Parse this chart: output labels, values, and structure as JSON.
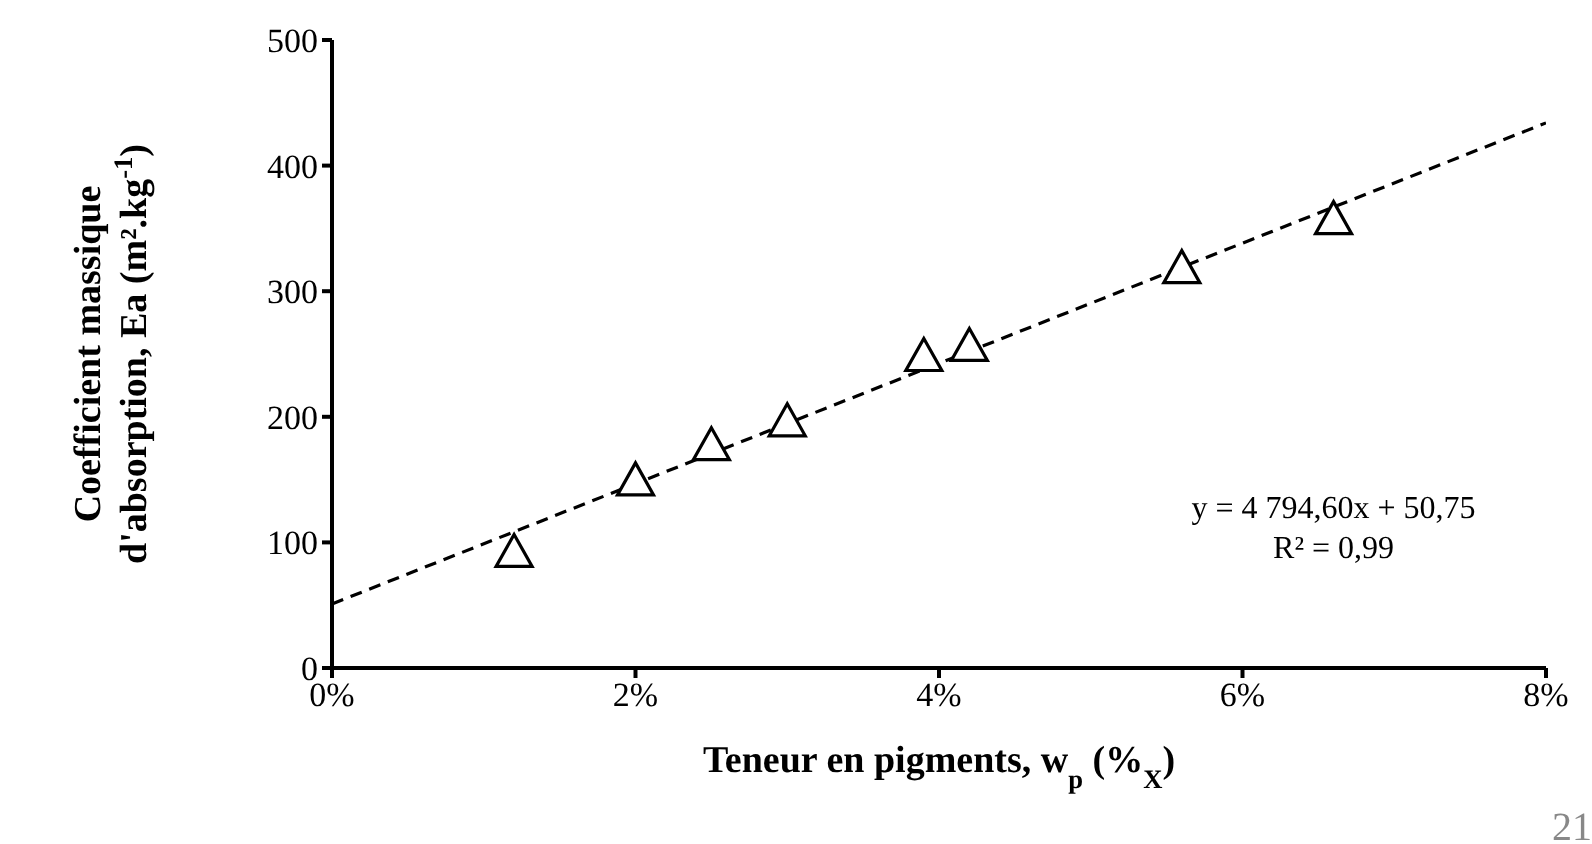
{
  "chart_data": {
    "type": "scatter",
    "xlabel": "Teneur en pigments, w$_{p}$ (%$_{X}$)",
    "ylabel": "Coefficient massique\nd'absorption, Ea (m².kg$^{-1}$)",
    "xlim": [
      0,
      0.08
    ],
    "xticks": [
      {
        "value": 0,
        "label": "0%"
      },
      {
        "value": 0.02,
        "label": "2%"
      },
      {
        "value": 0.04,
        "label": "4%"
      },
      {
        "value": 0.06,
        "label": "6%"
      },
      {
        "value": 0.08,
        "label": "8%"
      }
    ],
    "ylim": [
      0,
      500
    ],
    "yticks": [
      0,
      100,
      200,
      300,
      400,
      500
    ],
    "series": [
      {
        "marker": "triangle",
        "color": "#000000",
        "x": [
          0.012,
          0.02,
          0.025,
          0.03,
          0.039,
          0.042,
          0.056,
          0.066
        ],
        "values": [
          92,
          149,
          177,
          196,
          248,
          256,
          318,
          357
        ]
      },
      {
        "type": "line",
        "marker": "none",
        "line_style": "dashed",
        "color": "#000000",
        "x": [
          0,
          0.08
        ],
        "values": [
          51,
          434
        ]
      }
    ],
    "annotations": [
      "y = 4 794,60x + 50,75\nR² = 0,99",
      "21"
    ]
  }
}
